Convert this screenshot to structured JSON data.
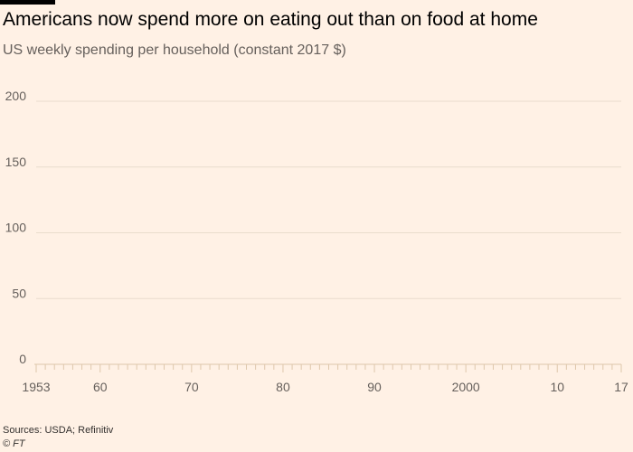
{
  "header": {
    "title": "Americans now spend more on eating out than on food at home",
    "subtitle": "US weekly spending per household (constant 2017 $)"
  },
  "footer": {
    "sources": "Sources: USDA; Refinitiv",
    "credit": "© FT"
  },
  "colors": {
    "background": "#fff1e5",
    "gridline": "#e9dccd",
    "axis": "#dec7ac",
    "text": "#66605c",
    "title": "#000000"
  },
  "chart_data": {
    "type": "line",
    "title": "Americans now spend more on eating out than on food at home",
    "subtitle": "US weekly spending per household (constant 2017 $)",
    "xlabel": "",
    "ylabel": "",
    "xlim": [
      1953,
      2017
    ],
    "ylim": [
      0,
      200
    ],
    "yticks": [
      0,
      50,
      100,
      150,
      200
    ],
    "ytick_labels": [
      "0",
      "50",
      "100",
      "150",
      "200"
    ],
    "xticks": [
      1953,
      1960,
      1970,
      1980,
      1990,
      2000,
      2010,
      2017
    ],
    "xtick_labels": [
      "1953",
      "60",
      "70",
      "80",
      "90",
      "2000",
      "10",
      "17"
    ],
    "minor_xtick_every": 1,
    "grid": true,
    "series": []
  }
}
